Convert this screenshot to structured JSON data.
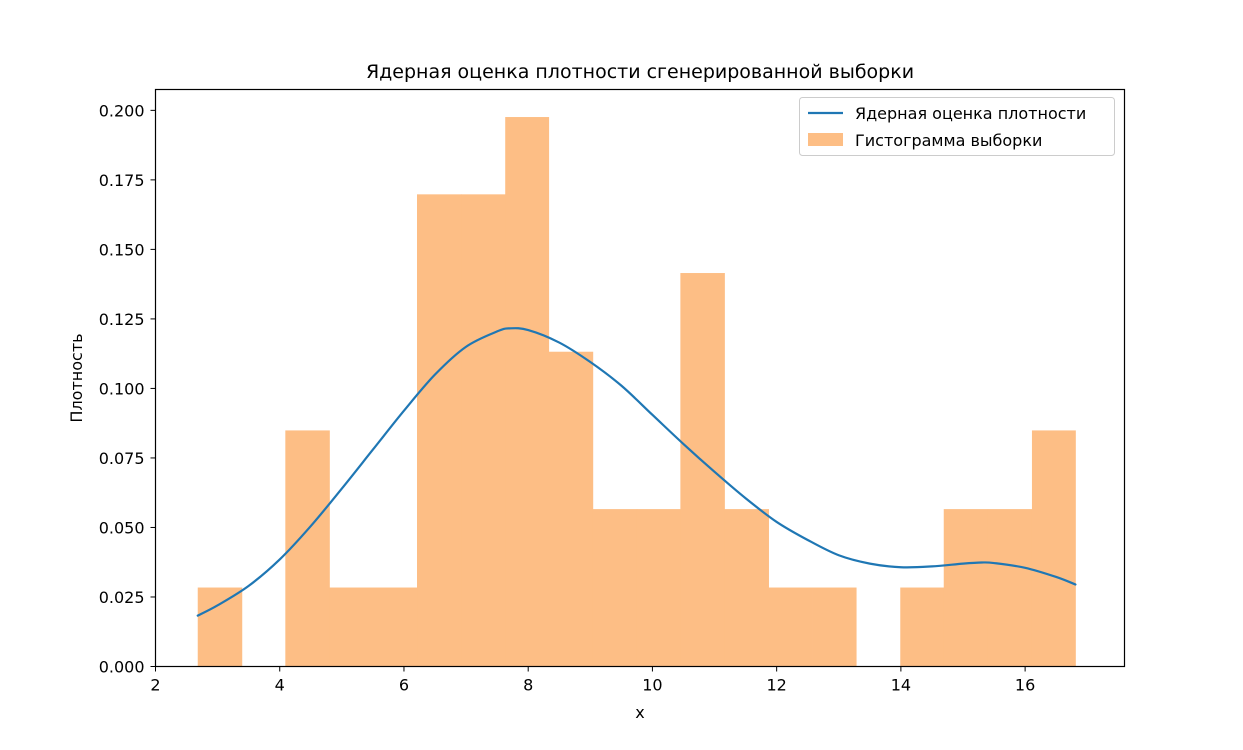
{
  "chart_data": {
    "type": "histogram+line",
    "title": "Ядерная оценка плотности сгенерированной выборки",
    "xlabel": "x",
    "ylabel": "Плотность",
    "xlim": [
      2.0,
      17.6
    ],
    "ylim": [
      0.0,
      0.2075
    ],
    "xticks": [
      2,
      4,
      6,
      8,
      10,
      12,
      14,
      16
    ],
    "yticks": [
      "0.000",
      "0.025",
      "0.050",
      "0.075",
      "0.100",
      "0.125",
      "0.150",
      "0.175",
      "0.200"
    ],
    "legend_position": "top-right",
    "legend": [
      {
        "label": "Ядерная оценка плотности",
        "kind": "line",
        "color": "#1f77b4"
      },
      {
        "label": "Гистограмма выборки",
        "kind": "patch",
        "color": "#fdbe85"
      }
    ],
    "histogram": {
      "name": "Гистограмма выборки",
      "color": "#fdbe85",
      "bins": [
        {
          "x0": 2.68,
          "x1": 3.39,
          "density": 0.0284
        },
        {
          "x0": 3.39,
          "x1": 4.09,
          "density": 0.0
        },
        {
          "x0": 4.09,
          "x1": 4.8,
          "density": 0.0849
        },
        {
          "x0": 4.8,
          "x1": 5.51,
          "density": 0.0284
        },
        {
          "x0": 5.51,
          "x1": 6.21,
          "density": 0.0284
        },
        {
          "x0": 6.21,
          "x1": 6.92,
          "density": 0.1698
        },
        {
          "x0": 6.92,
          "x1": 7.63,
          "density": 0.1698
        },
        {
          "x0": 7.63,
          "x1": 8.33,
          "density": 0.1976
        },
        {
          "x0": 8.33,
          "x1": 9.04,
          "density": 0.1132
        },
        {
          "x0": 9.04,
          "x1": 9.75,
          "density": 0.0566
        },
        {
          "x0": 9.75,
          "x1": 10.45,
          "density": 0.0566
        },
        {
          "x0": 10.45,
          "x1": 11.16,
          "density": 0.1415
        },
        {
          "x0": 11.16,
          "x1": 11.87,
          "density": 0.0566
        },
        {
          "x0": 11.87,
          "x1": 12.57,
          "density": 0.0284
        },
        {
          "x0": 12.57,
          "x1": 13.28,
          "density": 0.0284
        },
        {
          "x0": 13.28,
          "x1": 13.99,
          "density": 0.0
        },
        {
          "x0": 13.99,
          "x1": 14.69,
          "density": 0.0284
        },
        {
          "x0": 14.69,
          "x1": 15.4,
          "density": 0.0566
        },
        {
          "x0": 15.4,
          "x1": 16.11,
          "density": 0.0566
        },
        {
          "x0": 16.11,
          "x1": 16.81,
          "density": 0.0849
        }
      ]
    },
    "kde": {
      "name": "Ядерная оценка плотности",
      "color": "#1f77b4",
      "x": [
        2.68,
        3.0,
        3.5,
        4.0,
        4.5,
        5.0,
        5.5,
        6.0,
        6.5,
        7.0,
        7.5,
        7.7,
        8.0,
        8.5,
        9.0,
        9.5,
        10.0,
        10.5,
        11.0,
        11.5,
        12.0,
        12.5,
        13.0,
        13.5,
        14.0,
        14.5,
        15.0,
        15.3,
        15.5,
        16.0,
        16.5,
        16.81
      ],
      "y": [
        0.0183,
        0.022,
        0.029,
        0.0385,
        0.0505,
        0.064,
        0.078,
        0.092,
        0.105,
        0.115,
        0.1205,
        0.1216,
        0.121,
        0.1165,
        0.1095,
        0.101,
        0.0905,
        0.08,
        0.07,
        0.0605,
        0.052,
        0.0455,
        0.04,
        0.037,
        0.0357,
        0.036,
        0.037,
        0.0374,
        0.0372,
        0.0355,
        0.0322,
        0.0295
      ]
    }
  }
}
